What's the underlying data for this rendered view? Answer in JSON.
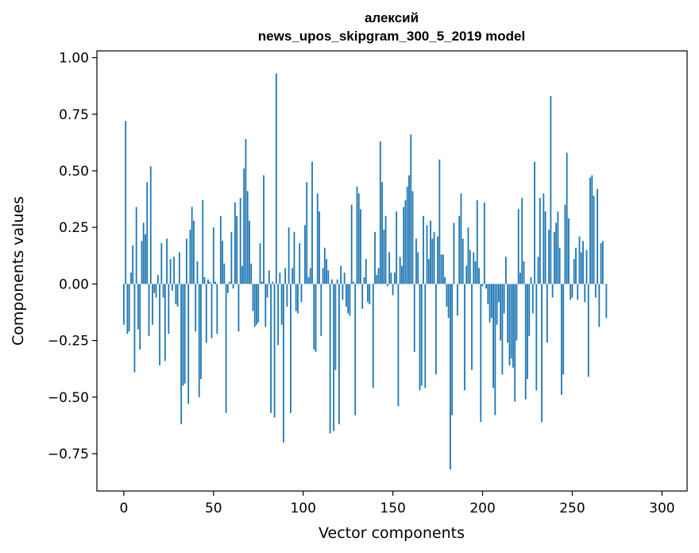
{
  "chart_data": {
    "type": "bar",
    "title": "алексий",
    "subtitle": "news_upos_skipgram_300_5_2019 model",
    "xlabel": "Vector components",
    "ylabel": "Components values",
    "xlim": [
      -15,
      314
    ],
    "ylim": [
      -0.915,
      1.03
    ],
    "xticks": [
      0,
      50,
      100,
      150,
      200,
      250,
      300
    ],
    "yticks": [
      -0.75,
      -0.5,
      -0.25,
      0.0,
      0.25,
      0.5,
      0.75,
      1.0
    ],
    "xtick_labels": [
      "0",
      "50",
      "100",
      "150",
      "200",
      "250",
      "300"
    ],
    "ytick_labels": [
      "−0.75",
      "−0.50",
      "−0.25",
      "0.00",
      "0.25",
      "0.50",
      "0.75",
      "1.00"
    ],
    "grid": false,
    "color": "#1f77b4",
    "values": [
      -0.18,
      0.72,
      -0.22,
      -0.21,
      0.05,
      0.17,
      -0.39,
      0.34,
      -0.2,
      -0.29,
      0.19,
      0.27,
      0.22,
      0.45,
      -0.23,
      0.52,
      -0.18,
      -0.04,
      -0.06,
      0.04,
      -0.36,
      0.18,
      -0.06,
      -0.34,
      0.2,
      -0.22,
      0.11,
      -0.03,
      0.12,
      -0.09,
      -0.1,
      0.14,
      -0.62,
      -0.45,
      -0.44,
      0.2,
      -0.53,
      0.24,
      0.34,
      0.28,
      -0.21,
      0.1,
      -0.5,
      -0.42,
      0.37,
      0.03,
      -0.26,
      0.02,
      0.01,
      -0.24,
      0.25,
      0.01,
      -0.22,
      0.0,
      0.3,
      0.19,
      0.09,
      -0.57,
      -0.04,
      0.01,
      0.23,
      -0.02,
      0.36,
      0.3,
      -0.21,
      0.38,
      0.08,
      0.51,
      0.64,
      0.41,
      0.28,
      0.09,
      -0.12,
      -0.19,
      -0.18,
      -0.17,
      0.18,
      0.01,
      0.48,
      -0.19,
      -0.06,
      0.06,
      -0.57,
      0.01,
      -0.59,
      0.93,
      -0.27,
      0.05,
      -0.18,
      -0.7,
      0.07,
      -0.1,
      0.25,
      -0.57,
      0.07,
      0.23,
      -0.12,
      -0.13,
      0.18,
      -0.08,
      0.0,
      0.26,
      0.45,
      0.03,
      0.07,
      0.54,
      -0.29,
      -0.3,
      0.4,
      0.32,
      -0.23,
      0.07,
      0.16,
      0.11,
      0.06,
      -0.66,
      0.02,
      -0.65,
      -0.38,
      0.02,
      -0.62,
      0.08,
      -0.07,
      0.05,
      -0.1,
      -0.13,
      -0.14,
      0.35,
      0.01,
      -0.58,
      0.43,
      0.4,
      0.33,
      -0.11,
      0.03,
      0.11,
      -0.08,
      -0.09,
      0.0,
      -0.46,
      0.23,
      0.04,
      0.07,
      0.63,
      0.45,
      0.24,
      0.3,
      -0.01,
      0.14,
      0.05,
      -0.05,
      0.05,
      0.32,
      -0.54,
      0.12,
      0.08,
      0.34,
      0.37,
      0.43,
      0.48,
      0.66,
      0.41,
      -0.3,
      0.2,
      0.14,
      -0.47,
      -0.45,
      0.3,
      -0.46,
      0.26,
      0.11,
      0.28,
      0.2,
      0.23,
      -0.4,
      0.21,
      0.55,
      0.13,
      0.13,
      0.03,
      -0.1,
      -0.15,
      -0.82,
      -0.58,
      0.27,
      0.0,
      -0.14,
      0.3,
      0.4,
      0.2,
      -0.47,
      0.08,
      0.25,
      0.15,
      -0.38,
      0.14,
      0.1,
      0.37,
      0.07,
      -0.61,
      -0.01,
      0.36,
      -0.02,
      -0.09,
      -0.17,
      -0.15,
      -0.46,
      -0.58,
      -0.18,
      -0.08,
      -0.25,
      -0.4,
      -0.13,
      0.12,
      -0.26,
      -0.36,
      -0.33,
      -0.37,
      -0.52,
      -0.25,
      0.33,
      0.05,
      0.38,
      0.1,
      -0.51,
      -0.42,
      -0.23,
      0.03,
      -0.13,
      0.54,
      -0.47,
      0.12,
      0.38,
      -0.61,
      0.4,
      0.32,
      -0.26,
      0.24,
      0.83,
      -0.06,
      0.23,
      0.27,
      0.32,
      0.16,
      -0.49,
      -0.4,
      0.35,
      0.58,
      0.29,
      -0.07,
      -0.06,
      0.11,
      0.16,
      -0.07,
      0.21,
      0.14,
      0.19,
      -0.08,
      0.15,
      -0.41,
      0.47,
      0.48,
      0.39,
      -0.06,
      0.42,
      -0.19,
      0.18,
      0.19,
      0.0,
      -0.15
    ]
  }
}
